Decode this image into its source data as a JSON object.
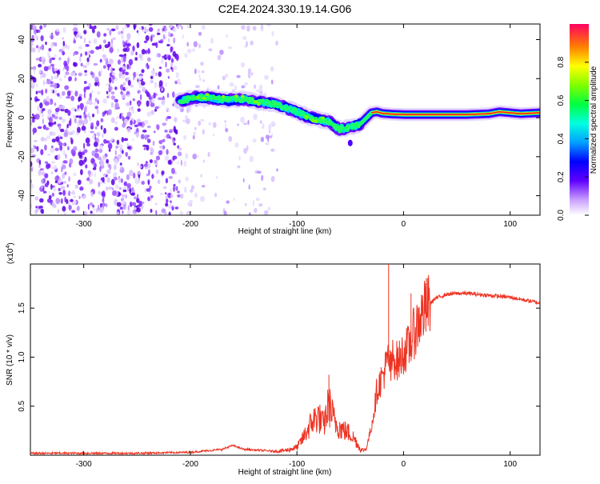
{
  "title": "C2E4.2024.330.19.14.G06",
  "chart_data": [
    {
      "type": "heatmap",
      "xlabel": "Height of straight line (km)",
      "ylabel": "Frequency (Hz)",
      "xlim": [
        -350,
        128
      ],
      "ylim": [
        -50,
        48
      ],
      "xticks": [
        -300,
        -200,
        -100,
        0,
        100
      ],
      "yticks": [
        -40,
        -20,
        0,
        20,
        40
      ],
      "colorbar": {
        "label": "Normalized spectral amplitude",
        "range": [
          0,
          1
        ],
        "ticks": [
          "0.0",
          "0.2",
          "0.4",
          "0.6",
          "0.8"
        ],
        "tick_values": [
          0.0,
          0.2,
          0.4,
          0.6,
          0.8
        ],
        "colormap": "rainbow"
      },
      "ridge": {
        "x": [
          -210,
          -195,
          -180,
          -165,
          -150,
          -135,
          -120,
          -110,
          -100,
          -90,
          -80,
          -70,
          -60,
          -50,
          -45,
          -40,
          -30,
          -25,
          -20,
          -10,
          0,
          20,
          40,
          60,
          80,
          90,
          100,
          110,
          128
        ],
        "y": [
          8.5,
          10.5,
          10,
          9,
          9.5,
          8,
          7,
          5,
          3,
          0.5,
          -1,
          -2,
          -6,
          -5,
          -4,
          -3,
          2.5,
          3,
          2.2,
          1.8,
          1.6,
          1.6,
          1.6,
          1.6,
          2,
          3,
          2.5,
          2,
          2.5
        ]
      },
      "noise_region_xlim": [
        -350,
        -118
      ]
    },
    {
      "type": "line",
      "xlabel": "Height of straight line (km)",
      "ylabel": "SNR (10 * v/v)",
      "y_multiplier": "(x10",
      "y_multiplier_exponent": "4",
      "y_multiplier_close": ")",
      "xlim": [
        -350,
        128
      ],
      "ylim": [
        0,
        1.95
      ],
      "xticks": [
        -300,
        -200,
        -100,
        0,
        100
      ],
      "yticks": [
        0.5,
        1.0,
        1.5
      ],
      "ytick_labels": [
        "0.5",
        "1.0",
        "1.5"
      ],
      "series": [
        {
          "color": "#ee3322",
          "x": [
            -350,
            -300,
            -250,
            -200,
            -170,
            -160,
            -150,
            -120,
            -110,
            -100,
            -95,
            -90,
            -85,
            -80,
            -75,
            -70,
            -65,
            -60,
            -55,
            -50,
            -45,
            -40,
            -35,
            -30,
            -27,
            -25,
            -20,
            -16,
            -14,
            -12,
            -10,
            -5,
            0,
            5,
            10,
            15,
            20,
            25,
            30,
            40,
            50,
            60,
            80,
            100,
            110,
            120,
            128
          ],
          "y": [
            0.02,
            0.02,
            0.02,
            0.03,
            0.06,
            0.1,
            0.06,
            0.04,
            0.05,
            0.08,
            0.16,
            0.26,
            0.35,
            0.4,
            0.3,
            0.52,
            0.35,
            0.28,
            0.25,
            0.22,
            0.15,
            0.05,
            0.06,
            0.3,
            0.5,
            0.66,
            0.8,
            0.92,
            1.0,
            0.85,
            1.0,
            0.95,
            1.05,
            1.1,
            1.25,
            1.38,
            1.48,
            1.55,
            1.6,
            1.64,
            1.65,
            1.65,
            1.63,
            1.61,
            1.59,
            1.57,
            1.55
          ]
        }
      ],
      "spikes": [
        {
          "x": -70,
          "y": 0.82
        },
        {
          "x": -14,
          "y": 1.95
        },
        {
          "x": 20,
          "y": 1.72
        },
        {
          "x": 7,
          "y": 1.65
        }
      ]
    }
  ]
}
